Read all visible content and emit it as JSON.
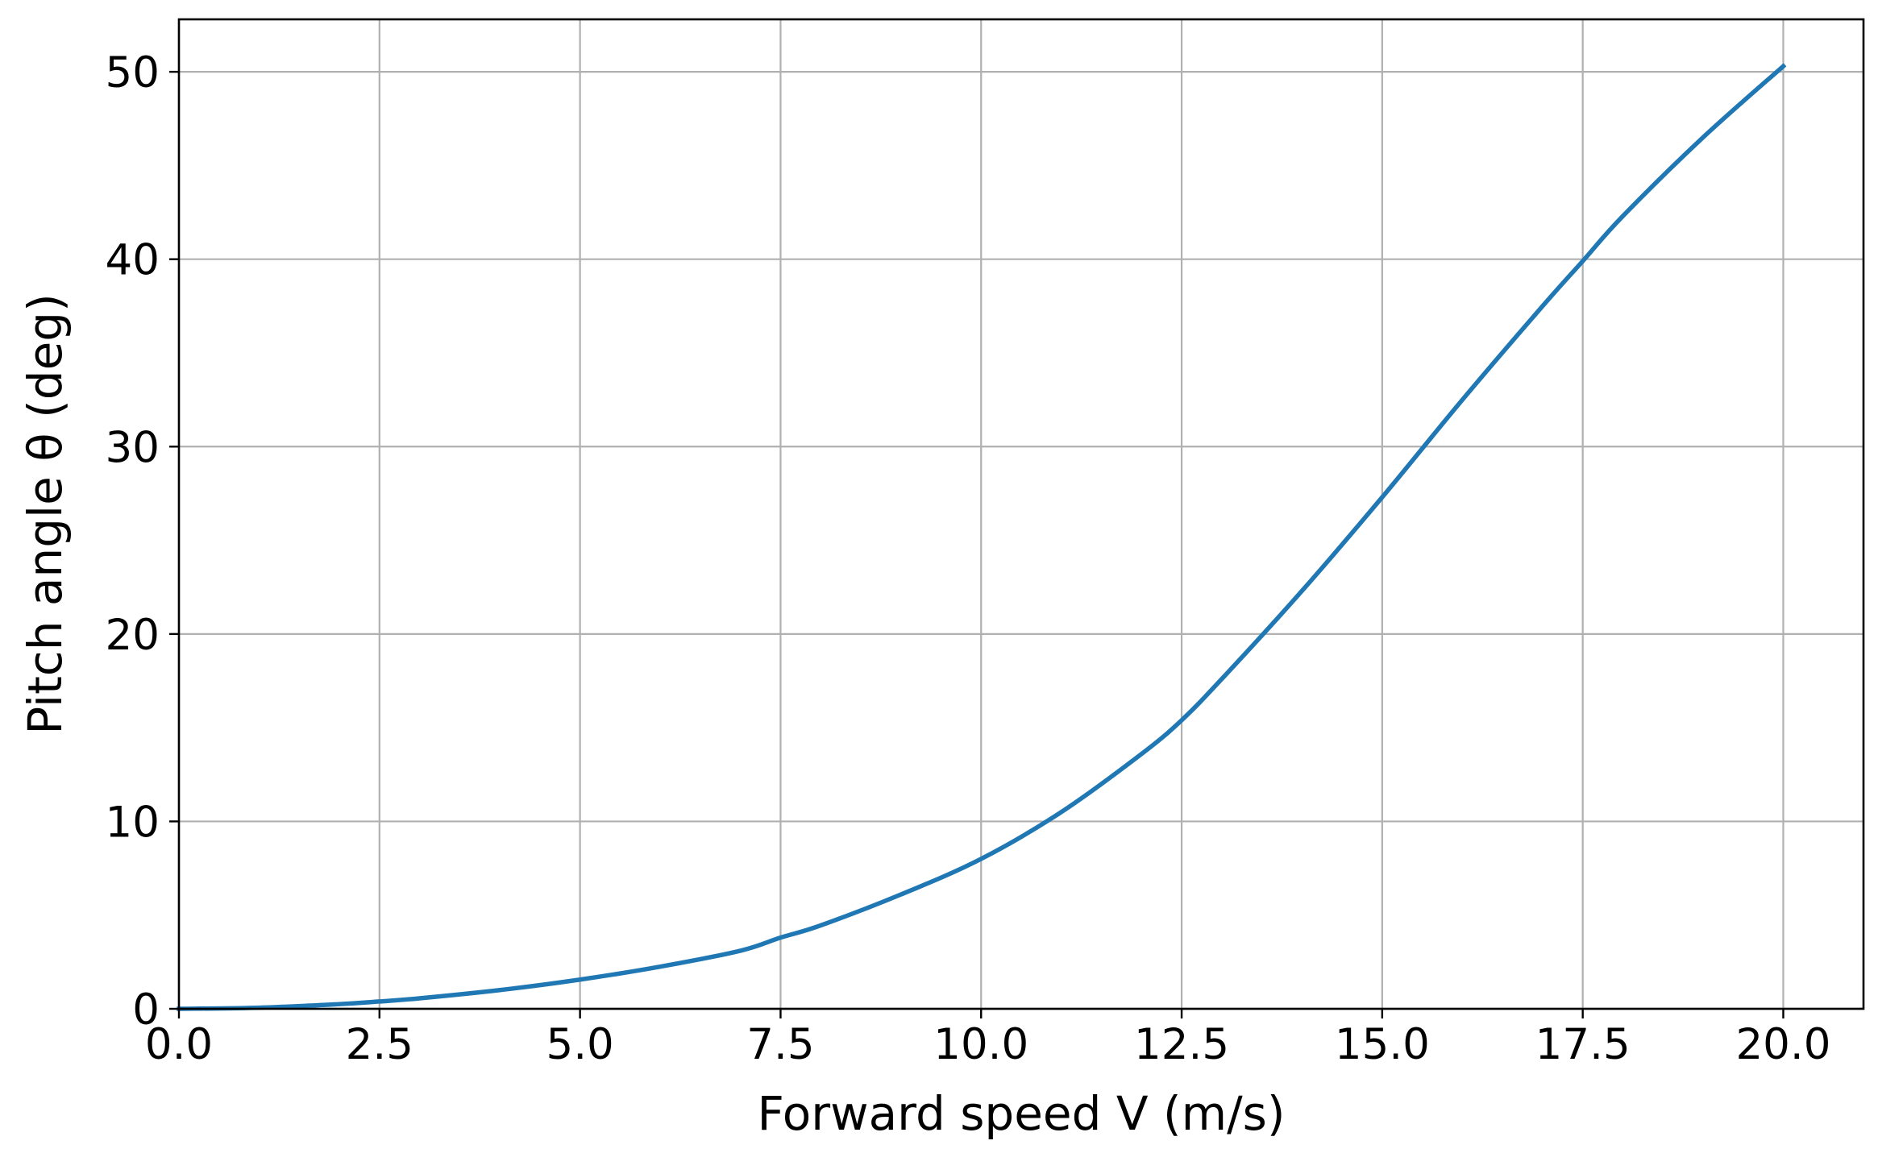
{
  "chart_data": {
    "type": "line",
    "title": "",
    "xlabel": "Forward speed V (m/s)",
    "ylabel": "Pitch angle θ (deg)",
    "xlim": [
      0,
      21
    ],
    "ylim": [
      0,
      52.8
    ],
    "x_ticks": [
      0,
      2.5,
      5,
      7.5,
      10,
      12.5,
      15,
      17.5,
      20
    ],
    "x_tick_labels": [
      "0.0",
      "2.5",
      "5.0",
      "7.5",
      "10.0",
      "12.5",
      "15.0",
      "17.5",
      "20.0"
    ],
    "y_ticks": [
      0,
      10,
      20,
      30,
      40,
      50
    ],
    "y_tick_labels": [
      "0",
      "10",
      "20",
      "30",
      "40",
      "50"
    ],
    "grid": true,
    "series": [
      {
        "color": "#1f77b4",
        "x": [
          0,
          1,
          2,
          2.5,
          3,
          4,
          5,
          6,
          7,
          7.5,
          8,
          9,
          10,
          11,
          12,
          12.5,
          13,
          14,
          15,
          16,
          17,
          17.5,
          18,
          19,
          20
        ],
        "y": [
          0,
          0.06,
          0.25,
          0.39,
          0.56,
          1.0,
          1.56,
          2.25,
          3.1,
          3.8,
          4.45,
          6.1,
          8.0,
          10.5,
          13.6,
          15.4,
          17.6,
          22.3,
          27.3,
          32.5,
          37.5,
          39.9,
          42.3,
          46.5,
          50.3
        ]
      }
    ]
  }
}
